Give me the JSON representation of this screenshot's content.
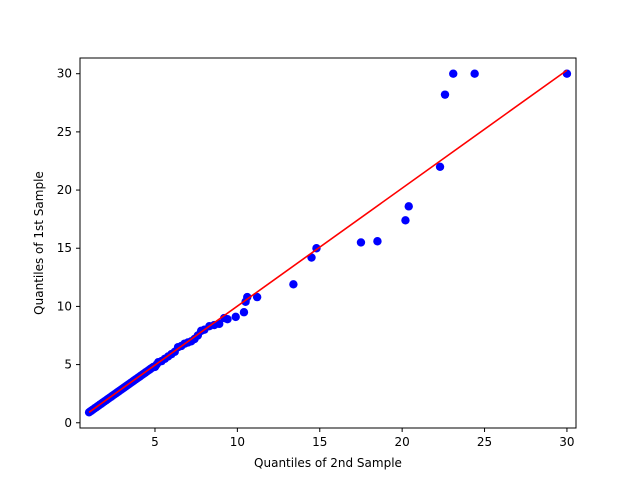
{
  "chart_data": {
    "type": "scatter",
    "title": "",
    "xlabel": "Quantiles of 2nd Sample",
    "ylabel": "Quantiles of 1st Sample",
    "xlim": [
      0.45,
      30.55
    ],
    "ylim": [
      -0.45,
      31.35
    ],
    "xticks": [
      5,
      10,
      15,
      20,
      25,
      30
    ],
    "yticks": [
      0,
      5,
      10,
      15,
      20,
      25,
      30
    ],
    "grid": false,
    "legend": "none",
    "marker_color": "#0000ff",
    "line_color": "#ff0000",
    "reference_line": {
      "x": [
        1.0,
        30.0
      ],
      "y": [
        0.9,
        30.3
      ]
    },
    "series": [
      {
        "x": [
          1.0,
          1.1,
          1.2,
          1.3,
          1.4,
          1.5,
          1.6,
          1.7,
          1.8,
          1.9,
          2.0,
          2.1,
          2.2,
          2.3,
          2.4,
          2.5,
          2.6,
          2.7,
          2.8,
          2.9,
          3.0,
          3.1,
          3.2,
          3.3,
          3.4,
          3.5,
          3.6,
          3.7,
          3.8,
          3.9,
          4.0,
          4.1,
          4.2,
          4.3,
          4.4,
          4.5,
          4.6,
          4.7,
          4.8,
          4.9,
          5.0,
          5.1,
          5.2,
          5.4,
          5.6,
          5.8,
          6.0,
          6.2,
          6.4,
          6.6,
          6.8,
          7.0,
          7.2,
          7.4,
          7.6,
          7.8,
          8.0,
          8.3,
          8.6,
          8.9,
          9.2,
          9.4,
          9.9,
          10.4,
          10.5,
          10.6,
          11.2,
          13.4,
          14.5,
          14.8,
          17.5,
          18.5,
          20.2,
          20.4,
          22.3,
          22.6,
          23.1,
          24.4,
          30.0
        ],
        "y": [
          0.9,
          1.0,
          1.1,
          1.2,
          1.3,
          1.4,
          1.5,
          1.6,
          1.7,
          1.8,
          1.9,
          2.0,
          2.1,
          2.2,
          2.3,
          2.4,
          2.5,
          2.6,
          2.7,
          2.8,
          2.9,
          3.0,
          3.1,
          3.2,
          3.3,
          3.4,
          3.5,
          3.6,
          3.7,
          3.8,
          3.9,
          4.0,
          4.1,
          4.2,
          4.3,
          4.4,
          4.5,
          4.6,
          4.7,
          4.8,
          4.8,
          5.0,
          5.2,
          5.3,
          5.5,
          5.7,
          5.9,
          6.1,
          6.5,
          6.6,
          6.8,
          6.9,
          7.0,
          7.2,
          7.5,
          7.9,
          8.0,
          8.3,
          8.4,
          8.5,
          9.0,
          8.9,
          9.1,
          9.5,
          10.4,
          10.8,
          10.8,
          11.9,
          14.2,
          15.0,
          15.5,
          15.6,
          17.4,
          18.6,
          22.0,
          28.2,
          30.0,
          30.0,
          30.0
        ]
      }
    ]
  }
}
